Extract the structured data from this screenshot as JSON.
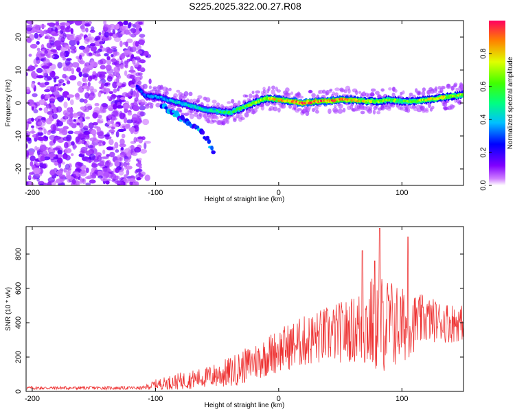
{
  "title": "S225.2025.322.00.27.R08",
  "chart_data": [
    {
      "type": "heatmap",
      "name": "spectrogram",
      "xlabel": "Height of straight line (km)",
      "ylabel": "Frequency (Hz)",
      "xlim": [
        -205,
        150
      ],
      "ylim": [
        -25,
        25
      ],
      "xticks": [
        -200,
        -100,
        0,
        100
      ],
      "yticks": [
        -20,
        -10,
        0,
        10,
        20
      ],
      "noise_region_x": [
        -205,
        -110
      ],
      "ridge": {
        "x": [
          -115,
          -108,
          -100,
          -90,
          -80,
          -70,
          -60,
          -50,
          -40,
          -30,
          -20,
          -10,
          0,
          10,
          20,
          30,
          40,
          50,
          60,
          70,
          80,
          90,
          100,
          110,
          120,
          130,
          140,
          150
        ],
        "y": [
          5,
          2,
          2,
          1,
          0,
          -1,
          -2,
          -2.5,
          -3,
          -1.5,
          0,
          1.5,
          1,
          0.5,
          0,
          0.5,
          0.5,
          1,
          1,
          0.5,
          0.5,
          1,
          0.5,
          0.5,
          1,
          1.5,
          2,
          2.5
        ],
        "amplitude": [
          0.25,
          0.3,
          0.35,
          0.4,
          0.4,
          0.45,
          0.45,
          0.5,
          0.55,
          0.6,
          0.65,
          0.75,
          0.8,
          0.85,
          0.95,
          0.85,
          0.9,
          0.85,
          0.8,
          0.75,
          0.7,
          0.65,
          0.6,
          0.65,
          0.7,
          0.75,
          0.7,
          0.65
        ]
      },
      "branch": {
        "x": [
          -95,
          -85,
          -75,
          -65,
          -58,
          -52
        ],
        "y": [
          -1,
          -3,
          -6,
          -8,
          -11,
          -15
        ]
      },
      "colorbar": {
        "label": "Normalized spectral amplitude",
        "range": [
          0,
          1
        ],
        "ticks": [
          "0.0",
          "0.2",
          "0.4",
          "0.6",
          "0.8"
        ],
        "tick_values": [
          0.0,
          0.2,
          0.4,
          0.6,
          0.8
        ]
      }
    },
    {
      "type": "line",
      "name": "snr",
      "xlabel": "Height of straight line (km)",
      "ylabel": "SNR (10 * v/v)",
      "xlim": [
        -205,
        150
      ],
      "ylim": [
        0,
        960
      ],
      "xticks": [
        -200,
        -100,
        0,
        100
      ],
      "yticks": [
        0,
        200,
        400,
        600,
        800
      ],
      "color": "#ee3333",
      "envelope": {
        "x": [
          -205,
          -110,
          -100,
          -80,
          -60,
          -40,
          -20,
          0,
          20,
          40,
          60,
          70,
          80,
          90,
          100,
          110,
          120,
          130,
          140,
          150
        ],
        "mean": [
          20,
          20,
          40,
          60,
          80,
          110,
          170,
          240,
          290,
          330,
          360,
          380,
          400,
          390,
          380,
          400,
          420,
          410,
          400,
          400
        ],
        "spread": [
          10,
          10,
          30,
          50,
          60,
          90,
          110,
          130,
          150,
          170,
          190,
          260,
          300,
          280,
          230,
          170,
          140,
          120,
          120,
          100
        ]
      },
      "peaks": [
        {
          "x": 82,
          "y": 950
        },
        {
          "x": 105,
          "y": 900
        },
        {
          "x": 68,
          "y": 820
        },
        {
          "x": 78,
          "y": 760
        }
      ]
    }
  ]
}
